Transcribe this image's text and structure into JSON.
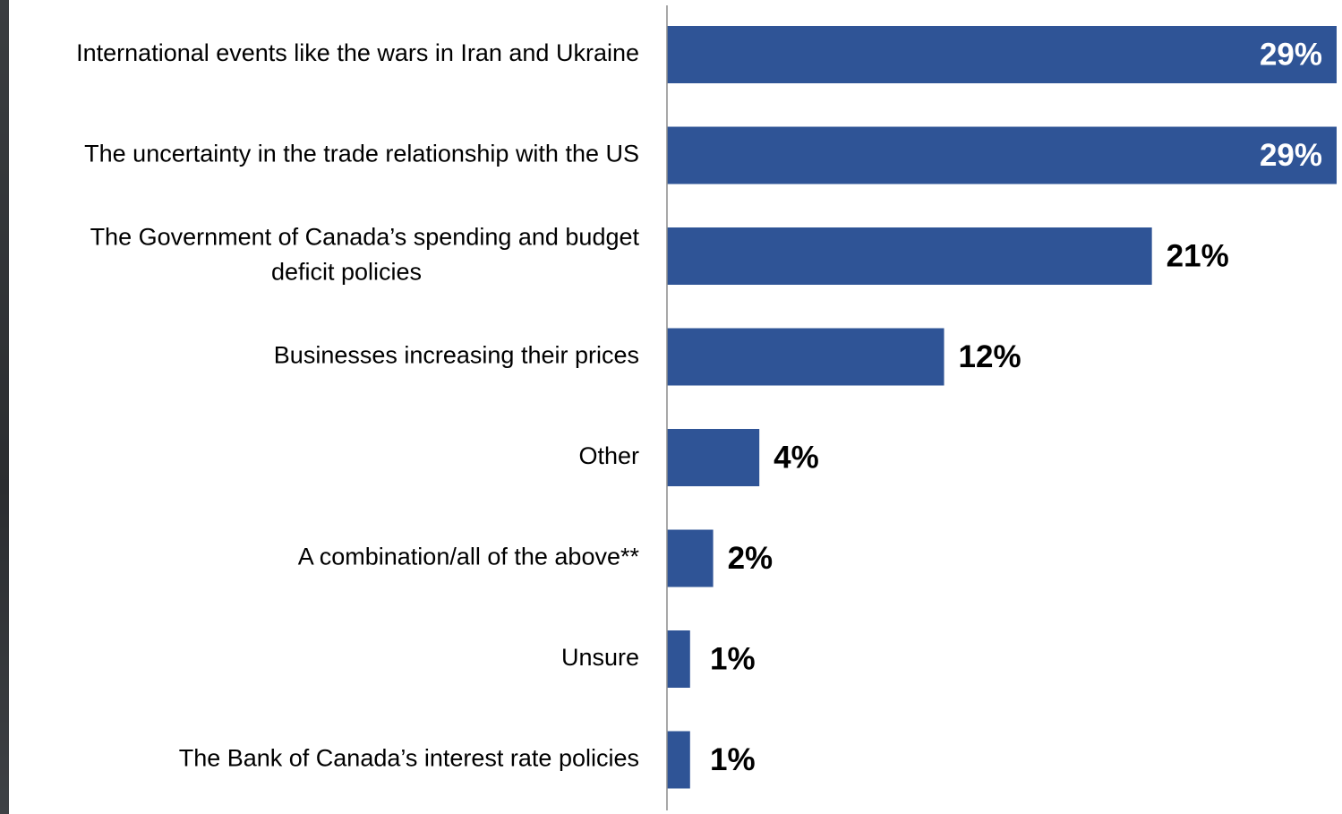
{
  "chart_data": {
    "type": "bar",
    "orientation": "horizontal",
    "categories": [
      [
        "International events like the wars in Iran and Ukraine"
      ],
      [
        "The uncertainty in the trade relationship with the US"
      ],
      [
        "The Government of Canada’s spending and budget",
        "deficit policies"
      ],
      [
        "Businesses increasing their prices"
      ],
      [
        "Other"
      ],
      [
        "A combination/all of the above**"
      ],
      [
        "Unsure"
      ],
      [
        "The Bank of Canada’s interest rate policies"
      ]
    ],
    "values": [
      29,
      29,
      21,
      12,
      4,
      2,
      1,
      1
    ],
    "value_labels": [
      "29%",
      "29%",
      "21%",
      "12%",
      "4%",
      "2%",
      "1%",
      "1%"
    ],
    "value_label_inside": [
      true,
      true,
      false,
      false,
      false,
      false,
      false,
      false
    ],
    "bar_color": "#2f5496",
    "inside_label_color": "#ffffff",
    "outside_label_color": "#000000",
    "axis_color": "#8c8c8c",
    "grid": false,
    "legend": "none"
  }
}
